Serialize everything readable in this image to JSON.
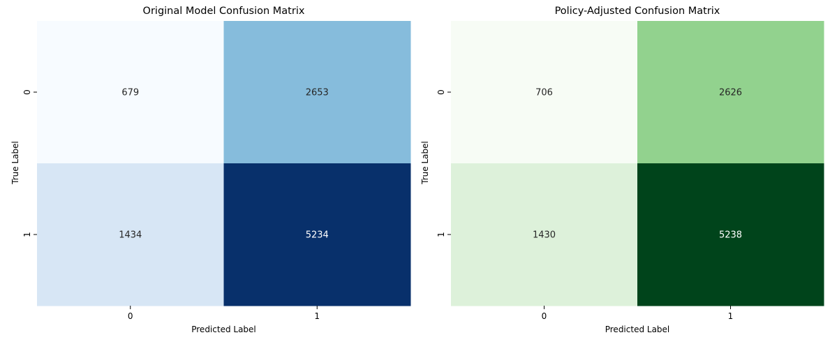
{
  "chart_data": [
    {
      "type": "heatmap",
      "title": "Original Model Confusion Matrix",
      "xlabel": "Predicted Label",
      "ylabel": "True Label",
      "x_categories": [
        "0",
        "1"
      ],
      "y_categories": [
        "0",
        "1"
      ],
      "values": [
        [
          679,
          2653
        ],
        [
          1434,
          5234
        ]
      ],
      "colormap": "Blues",
      "color_low": "#f7fbff",
      "color_high": "#08306b",
      "colorbar": false,
      "cell_colors": [
        [
          "#f7fbff",
          "#86bcdc"
        ],
        [
          "#d7e6f5",
          "#08306b"
        ]
      ],
      "text_colors": [
        [
          "#262626",
          "#262626"
        ],
        [
          "#262626",
          "#ffffff"
        ]
      ]
    },
    {
      "type": "heatmap",
      "title": "Policy-Adjusted Confusion Matrix",
      "xlabel": "Predicted Label",
      "ylabel": "True Label",
      "x_categories": [
        "0",
        "1"
      ],
      "y_categories": [
        "0",
        "1"
      ],
      "values": [
        [
          706,
          2626
        ],
        [
          1430,
          5238
        ]
      ],
      "colormap": "Greens",
      "color_low": "#f7fcf5",
      "color_high": "#00441b",
      "colorbar": false,
      "cell_colors": [
        [
          "#f7fcf5",
          "#92d28e"
        ],
        [
          "#ddf1da",
          "#00441b"
        ]
      ],
      "text_colors": [
        [
          "#262626",
          "#262626"
        ],
        [
          "#262626",
          "#ffffff"
        ]
      ]
    }
  ]
}
